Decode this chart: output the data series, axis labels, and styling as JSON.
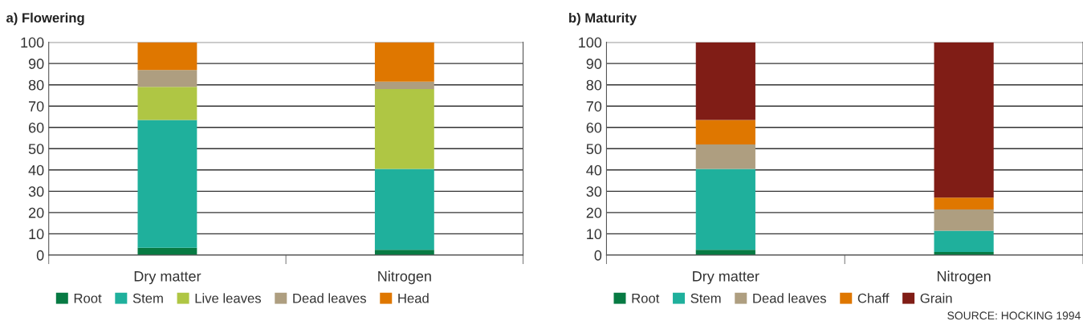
{
  "chart_data": [
    {
      "type": "bar",
      "title": "a) Flowering",
      "categories": [
        "Dry matter",
        "Nitrogen"
      ],
      "stacked": true,
      "ylim": [
        0,
        100
      ],
      "yticks": [
        0,
        10,
        20,
        30,
        40,
        50,
        60,
        70,
        80,
        90,
        100
      ],
      "grid": "y",
      "legend": "bottom left",
      "series": [
        {
          "name": "Root",
          "color": "#077a43",
          "values": [
            3.5,
            2.5
          ]
        },
        {
          "name": "Stem",
          "color": "#1fb09c",
          "values": [
            60,
            38
          ]
        },
        {
          "name": "Live leaves",
          "color": "#afc644",
          "values": [
            15.5,
            37.5
          ]
        },
        {
          "name": "Dead leaves",
          "color": "#ae9e80",
          "values": [
            8,
            3.5
          ]
        },
        {
          "name": "Head",
          "color": "#df7700",
          "values": [
            13,
            18.5
          ]
        }
      ]
    },
    {
      "type": "bar",
      "title": "b) Maturity",
      "categories": [
        "Dry matter",
        "Nitrogen"
      ],
      "stacked": true,
      "ylim": [
        0,
        100
      ],
      "yticks": [
        0,
        10,
        20,
        30,
        40,
        50,
        60,
        70,
        80,
        90,
        100
      ],
      "grid": "y",
      "legend": "bottom left",
      "annotations": [
        "SOURCE: HOCKING 1994"
      ],
      "series": [
        {
          "name": "Root",
          "color": "#077a43",
          "values": [
            2.5,
            1.5
          ]
        },
        {
          "name": "Stem",
          "color": "#1fb09c",
          "values": [
            38,
            10
          ]
        },
        {
          "name": "Dead leaves",
          "color": "#ae9e80",
          "values": [
            11.5,
            10
          ]
        },
        {
          "name": "Chaff",
          "color": "#df7700",
          "values": [
            11.5,
            5.5
          ]
        },
        {
          "name": "Grain",
          "color": "#801d16",
          "values": [
            36.5,
            73
          ]
        }
      ]
    }
  ]
}
